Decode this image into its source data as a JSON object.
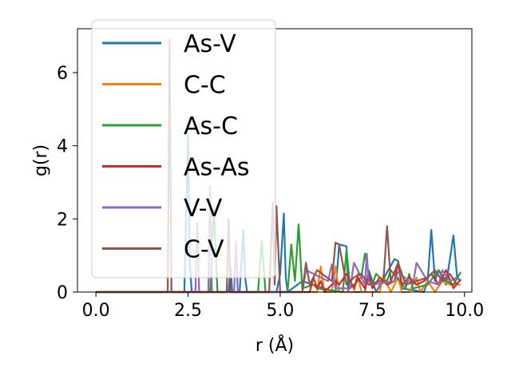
{
  "chart_data": {
    "type": "line",
    "xlabel": "r (Å)",
    "ylabel": "g(r)",
    "xlim": [
      -0.5,
      10.2
    ],
    "ylim": [
      0,
      7.2
    ],
    "xticks": [
      0,
      2.5,
      5,
      7.5,
      10
    ],
    "xtick_labels": [
      "0.0",
      "2.5",
      "5.0",
      "7.5",
      "10.0"
    ],
    "yticks": [
      0,
      2,
      4,
      6
    ],
    "ytick_labels": [
      "0",
      "2",
      "4",
      "6"
    ],
    "grid": false,
    "legend_position": "top-left",
    "series": [
      {
        "name": "As-V",
        "color": "#1f77b4",
        "x": [
          0,
          2.4,
          2.45,
          2.5,
          2.55,
          2.6,
          3.6,
          3.65,
          3.7,
          3.9,
          4.0,
          4.05,
          4.1,
          4.9,
          5.0,
          5.1,
          5.15,
          5.2,
          5.6,
          6.5,
          6.6,
          6.8,
          6.85,
          7.3,
          7.4,
          7.6,
          8.1,
          8.2,
          8.3,
          8.9,
          9.0,
          9.1,
          9.2,
          9.3,
          9.5,
          9.7,
          9.8,
          9.9
        ],
        "y": [
          0,
          0,
          2.2,
          4.3,
          0.8,
          0,
          0,
          0.7,
          0,
          0,
          1.7,
          0.4,
          0,
          0,
          0.5,
          2.15,
          0.4,
          0,
          0.3,
          0,
          1.3,
          1.25,
          0,
          0,
          0.6,
          0,
          0.9,
          0.85,
          0.1,
          0,
          0.3,
          1.7,
          0.3,
          0.6,
          0.2,
          1.55,
          0.4,
          0.3
        ]
      },
      {
        "name": "C-C",
        "color": "#ff7f0e",
        "x": [
          0,
          6.0,
          6.1,
          6.2,
          6.4,
          6.5,
          6.6,
          7.0,
          7.1,
          7.2,
          7.7,
          7.8,
          8.0,
          8.2,
          8.3,
          8.5,
          8.7,
          8.8,
          9.0,
          9.2,
          9.4,
          9.6,
          9.9
        ],
        "y": [
          0,
          0,
          0.7,
          0,
          0,
          0.7,
          0,
          0,
          0.5,
          0,
          0,
          0.45,
          0,
          0.4,
          0,
          0,
          0.4,
          0,
          0.3,
          0,
          0.3,
          0.2,
          0.2
        ]
      },
      {
        "name": "As-C",
        "color": "#2ca02c",
        "x": [
          0,
          3.1,
          3.2,
          3.3,
          4.4,
          4.5,
          4.6,
          5.2,
          5.3,
          5.4,
          5.5,
          5.6,
          5.9,
          6.0,
          6.7,
          6.8,
          6.9,
          7.2,
          7.3,
          7.4,
          7.5,
          7.6,
          7.8,
          7.9,
          8.0,
          8.4,
          8.5,
          8.6,
          9.0,
          9.3,
          9.5,
          9.7,
          9.9
        ],
        "y": [
          0,
          0,
          2.3,
          0,
          0,
          1.4,
          0,
          0,
          1.3,
          0.3,
          1.85,
          0.1,
          0.2,
          0.1,
          0,
          1.15,
          0.1,
          0.4,
          1.05,
          0.5,
          0.2,
          0.5,
          0.3,
          0.3,
          0.6,
          0.1,
          0.5,
          0.1,
          0.2,
          0.6,
          0.3,
          0.2,
          0.55
        ]
      },
      {
        "name": "As-As",
        "color": "#d62728",
        "x": [
          0,
          5.8,
          5.9,
          6.0,
          6.1,
          6.2,
          6.5,
          6.6,
          6.8,
          7.0,
          7.1,
          7.3,
          7.4,
          7.5,
          7.7,
          7.9,
          8.1,
          8.2,
          8.3,
          8.5,
          8.7,
          8.9,
          9.1,
          9.3,
          9.5,
          9.7,
          9.9
        ],
        "y": [
          0,
          0,
          0.4,
          0.1,
          0.3,
          0,
          0.3,
          0.2,
          0.5,
          0.1,
          0.4,
          0.1,
          0.5,
          0.1,
          0.4,
          0.2,
          0.3,
          0.8,
          0.2,
          0.4,
          0.2,
          0.3,
          0.5,
          0.2,
          0.6,
          0.1,
          0.35
        ]
      },
      {
        "name": "V-V",
        "color": "#9467bd",
        "x": [
          0,
          2.7,
          2.75,
          2.8,
          3.05,
          3.1,
          3.15,
          3.75,
          3.8,
          3.85,
          5.6,
          5.7,
          6.3,
          6.4,
          6.5,
          6.9,
          7.0,
          7.3,
          7.35,
          7.4,
          7.5,
          8.1,
          8.2,
          8.6,
          8.7,
          9.0,
          9.3,
          9.4,
          9.6,
          9.8
        ],
        "y": [
          0,
          0,
          1.9,
          0,
          0,
          2.9,
          0,
          0,
          1.4,
          0,
          0,
          0.6,
          0.3,
          0.75,
          0.1,
          0.1,
          0.8,
          0.2,
          1.05,
          0.3,
          0.2,
          0.3,
          0.55,
          0.2,
          0.8,
          0.3,
          0.2,
          0.6,
          0.3,
          0.4
        ]
      },
      {
        "name": "C-V",
        "color": "#8c564b",
        "x": [
          0,
          1.95,
          2.0,
          2.05,
          3.55,
          3.6,
          3.65,
          4.7,
          4.8,
          4.85,
          4.9,
          5.0,
          5.6,
          5.7,
          5.8,
          6.0,
          6.4,
          6.5,
          6.6,
          6.8,
          7.0,
          7.2,
          7.4,
          7.7,
          7.8,
          7.9,
          8.0,
          8.2,
          8.4,
          8.7,
          9.0,
          9.2,
          9.4,
          9.6,
          9.8
        ],
        "y": [
          0,
          0,
          6.9,
          0,
          0,
          2.0,
          0,
          0,
          2.45,
          0.2,
          2.35,
          0,
          0,
          0.8,
          0.2,
          0.6,
          0.3,
          1.35,
          1.3,
          0.2,
          0.4,
          0.5,
          0.2,
          0.3,
          0.3,
          1.8,
          0.3,
          0.8,
          0.2,
          0.3,
          0.4,
          0.6,
          0.3,
          0.5,
          0.2
        ]
      }
    ]
  }
}
